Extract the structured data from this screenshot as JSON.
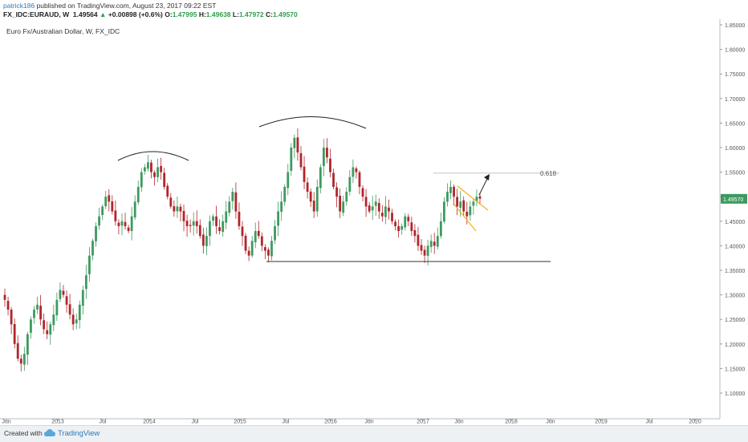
{
  "header": {
    "author": "patrick186",
    "published_text": " published on TradingView.com, August 23, 2017 09:22 EST",
    "symbol": "FX_IDC:EURAUD, W",
    "last": "1.49564",
    "change": "+0.00898 (+0.6%)",
    "open_label": "O:",
    "open": "1.47995",
    "high_label": "H:",
    "high": "1.49638",
    "low_label": "L:",
    "low": "1.47972",
    "close_label": "C:",
    "close": "1.49570"
  },
  "chart_title": "Euro Fx/Australian Dollar, W, FX_IDC",
  "footer": {
    "created_with": "Created with",
    "brand": "TradingView"
  },
  "colors": {
    "up": "#3d9a5f",
    "down": "#b0262b",
    "wedge": "#f5b40d",
    "price_tag": "#3d9a5f",
    "axis": "#555555"
  },
  "chart_data": {
    "type": "candlestick",
    "y_axis": {
      "min": 1.05,
      "max": 1.87,
      "ticks": [
        "1.85000",
        "1.80000",
        "1.75000",
        "1.70000",
        "1.65000",
        "1.60000",
        "1.55000",
        "1.50000",
        "1.45000",
        "1.40000",
        "1.35000",
        "1.30000",
        "1.25000",
        "1.20000",
        "1.15000",
        "1.10000"
      ],
      "position": "right"
    },
    "x_axis": {
      "ticks": [
        "Jun",
        "2013",
        "Jul",
        "2014",
        "Jul",
        "2015",
        "Jul",
        "2016",
        "Jun",
        "2017",
        "Jun",
        "2018",
        "Jun",
        "2019",
        "Jul",
        "2020"
      ]
    },
    "last_price_label": "1.49570",
    "fib_label": "0.618",
    "fib_level": 1.548,
    "support_level": 1.368,
    "price_path": [
      1.29,
      1.27,
      1.24,
      1.2,
      1.17,
      1.16,
      1.18,
      1.22,
      1.25,
      1.27,
      1.28,
      1.25,
      1.23,
      1.22,
      1.24,
      1.26,
      1.29,
      1.31,
      1.3,
      1.28,
      1.26,
      1.24,
      1.25,
      1.28,
      1.31,
      1.34,
      1.38,
      1.41,
      1.44,
      1.46,
      1.48,
      1.5,
      1.49,
      1.47,
      1.45,
      1.44,
      1.45,
      1.44,
      1.43,
      1.46,
      1.49,
      1.52,
      1.55,
      1.56,
      1.57,
      1.55,
      1.54,
      1.56,
      1.55,
      1.52,
      1.5,
      1.48,
      1.47,
      1.48,
      1.47,
      1.45,
      1.44,
      1.44,
      1.45,
      1.44,
      1.42,
      1.4,
      1.42,
      1.45,
      1.46,
      1.44,
      1.43,
      1.45,
      1.47,
      1.49,
      1.51,
      1.47,
      1.44,
      1.42,
      1.39,
      1.38,
      1.41,
      1.43,
      1.42,
      1.4,
      1.39,
      1.38,
      1.41,
      1.44,
      1.47,
      1.49,
      1.52,
      1.55,
      1.6,
      1.62,
      1.59,
      1.56,
      1.53,
      1.51,
      1.49,
      1.47,
      1.52,
      1.56,
      1.6,
      1.58,
      1.55,
      1.52,
      1.5,
      1.47,
      1.49,
      1.51,
      1.54,
      1.56,
      1.55,
      1.52,
      1.5,
      1.48,
      1.47,
      1.48,
      1.49,
      1.47,
      1.46,
      1.48,
      1.47,
      1.45,
      1.44,
      1.43,
      1.44,
      1.46,
      1.45,
      1.43,
      1.42,
      1.4,
      1.39,
      1.38,
      1.4,
      1.41,
      1.4,
      1.42,
      1.45,
      1.49,
      1.51,
      1.52,
      1.5,
      1.48,
      1.49,
      1.47,
      1.46,
      1.48,
      1.49,
      1.5,
      1.496
    ]
  }
}
